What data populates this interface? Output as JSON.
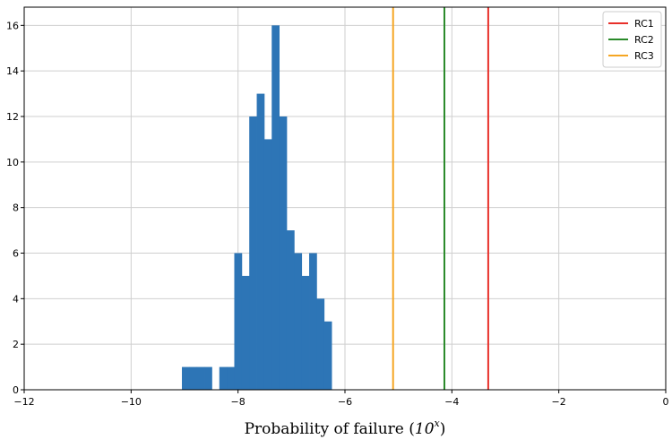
{
  "chart_data": {
    "type": "bar",
    "xlabel_prefix": "Probability of failure (",
    "xlabel_power_base": "10",
    "xlabel_power_exp": "x",
    "xlabel_suffix": ")",
    "xlim": [
      -12,
      0
    ],
    "ylim": [
      0,
      16.8
    ],
    "grid": true,
    "legend_position": "top-right",
    "x_ticks": [
      -12,
      -10,
      -8,
      -6,
      -4,
      -2,
      0
    ],
    "y_ticks": [
      0,
      2,
      4,
      6,
      8,
      10,
      12,
      14,
      16
    ],
    "bar_color": "#2d75b6",
    "bin_width": 0.14,
    "bins": [
      {
        "start": -9.05,
        "count": 1
      },
      {
        "start": -8.91,
        "count": 1
      },
      {
        "start": -8.77,
        "count": 1
      },
      {
        "start": -8.63,
        "count": 1
      },
      {
        "start": -8.35,
        "count": 1
      },
      {
        "start": -8.21,
        "count": 1
      },
      {
        "start": -8.07,
        "count": 6
      },
      {
        "start": -7.93,
        "count": 5
      },
      {
        "start": -7.79,
        "count": 12
      },
      {
        "start": -7.65,
        "count": 13
      },
      {
        "start": -7.51,
        "count": 11
      },
      {
        "start": -7.37,
        "count": 16
      },
      {
        "start": -7.23,
        "count": 12
      },
      {
        "start": -7.09,
        "count": 7
      },
      {
        "start": -6.95,
        "count": 6
      },
      {
        "start": -6.81,
        "count": 5
      },
      {
        "start": -6.67,
        "count": 6
      },
      {
        "start": -6.53,
        "count": 4
      },
      {
        "start": -6.39,
        "count": 3
      }
    ],
    "series": [
      {
        "name": "RC1",
        "x": -3.32,
        "color": "#e8302a"
      },
      {
        "name": "RC2",
        "x": -4.14,
        "color": "#2a8a2a"
      },
      {
        "name": "RC3",
        "x": -5.1,
        "color": "#f5a623"
      }
    ]
  }
}
